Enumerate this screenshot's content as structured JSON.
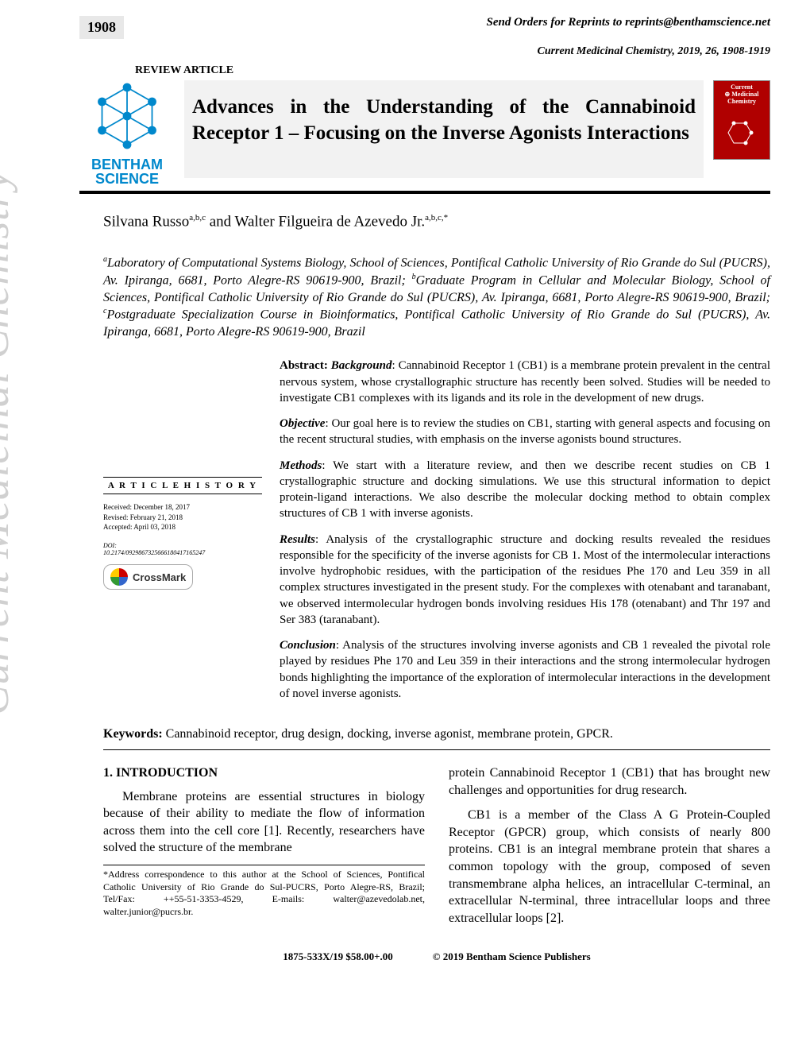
{
  "header": {
    "page_number": "1908",
    "reprints_line": "Send Orders for Reprints to reprints@benthamscience.net",
    "journal_citation": "Current Medicinal Chemistry, 2019, 26, 1908-1919",
    "article_type": "REVIEW ARTICLE"
  },
  "logo": {
    "bentham_line1": "BENTHAM",
    "bentham_line2": "SCIENCE",
    "stroke_color": "#0088cc",
    "text_color": "#0088cc"
  },
  "title": "Advances in the Understanding of the Cannabinoid Receptor 1 – Focusing on the Inverse Agonists Interactions",
  "cover_thumb": {
    "line1": "Current",
    "line2": "Medicinal",
    "line3": "Chemistry",
    "bg_color": "#b00000"
  },
  "authors_html": "Silvana Russo<sup>a,b,c</sup> and Walter Filgueira de Azevedo Jr.<sup>a,b,c,*</sup>",
  "affiliations_html": "<sup>a</sup>Laboratory of Computational Systems Biology, School of Sciences, Pontifical Catholic University of Rio Grande do Sul (PUCRS), Av. Ipiranga, 6681, Porto Alegre-RS 90619-900, Brazil; <sup>b</sup>Graduate Program in Cellular and Molecular Biology, School of Sciences, Pontifical Catholic University of Rio Grande do Sul (PUCRS), Av. Ipiranga, 6681, Porto Alegre-RS 90619-900, Brazil; <sup>c</sup>Postgraduate Specialization Course in Bioinformatics, Pontifical Catholic University of Rio Grande do Sul (PUCRS), Av. Ipiranga, 6681, Porto Alegre-RS 90619-900, Brazil",
  "history": {
    "heading": "A R T I C L E  H I S T O R Y",
    "received": "Received: December 18, 2017",
    "revised": "Revised: February 21, 2018",
    "accepted": "Accepted: April 03, 2018",
    "doi_label": "DOI:",
    "doi": "10.2174/0929867325666180417165247",
    "crossmark_label": "CrossMark",
    "crossmark_colors": [
      "#ffcc00",
      "#cc0000",
      "#3366cc",
      "#339933"
    ]
  },
  "abstract": {
    "heading": "Abstract:",
    "sections": [
      {
        "label": "Background",
        "text": ": Cannabinoid Receptor 1 (CB1) is a membrane protein prevalent in the central nervous system, whose crystallographic structure has recently been solved. Studies will be needed to investigate CB1 complexes with its ligands and its role in the development of new drugs."
      },
      {
        "label": "Objective",
        "text": ": Our goal here is to review the studies on CB1, starting with general aspects and focusing on the recent structural studies, with emphasis on the inverse agonists bound structures."
      },
      {
        "label": "Methods",
        "text": ": We start with a literature review, and then we describe recent studies on CB 1 crystallographic structure and docking simulations. We use this structural information to depict protein-ligand interactions. We also describe the molecular docking method to obtain complex structures of CB 1 with inverse agonists."
      },
      {
        "label": "Results",
        "text": ": Analysis of the crystallographic structure and docking results revealed the residues responsible for the specificity of the inverse agonists for CB 1. Most of the intermolecular interactions involve hydrophobic residues, with the participation of the residues Phe 170 and Leu 359 in all complex structures investigated in the present study. For the complexes with otenabant and taranabant, we observed intermolecular hydrogen bonds involving residues His 178 (otenabant) and Thr 197 and Ser 383 (taranabant)."
      },
      {
        "label": "Conclusion",
        "text": ": Analysis of the structures involving inverse agonists and CB 1 revealed the pivotal role played by residues Phe 170 and Leu 359 in their interactions and the strong intermolecular hydrogen bonds highlighting the importance of the exploration of intermolecular interactions in the development of novel inverse agonists."
      }
    ]
  },
  "keywords": {
    "label": "Keywords:",
    "text": " Cannabinoid receptor, drug design, docking, inverse agonist, membrane protein, GPCR."
  },
  "body": {
    "heading": "1. INTRODUCTION",
    "left_p1": "Membrane proteins are essential structures in biology because of their ability to mediate the flow of information across them into the cell core [1]. Recently, researchers have solved the structure of the membrane",
    "right_p1": "protein Cannabinoid Receptor 1 (CB1) that has brought new challenges and opportunities for drug research.",
    "right_p2": "CB1 is a member of the Class A G Protein-Coupled Receptor (GPCR) group, which consists of nearly 800 proteins. CB1 is an integral membrane protein that shares a common topology with the group, composed of seven transmembrane alpha helices, an intracellular C-terminal, an extracellular N-terminal, three intracellular loops and three extracellular loops [2].",
    "corr": "*Address correspondence to this author at the School of Sciences, Pontifical Catholic University of Rio Grande do Sul-PUCRS, Porto Alegre-RS, Brazil; Tel/Fax: ++55-51-3353-4529,\nE-mails: walter@azevedolab.net, walter.junior@pucrs.br."
  },
  "footer": {
    "issn_price": "1875-533X/19 $58.00+.00",
    "copyright": "© 2019 Bentham Science Publishers"
  },
  "watermark": "Current Medicinal Chemistry",
  "colors": {
    "header_box_bg": "#e8e8e8",
    "title_bg": "#f2f2f2",
    "watermark_color": "#d0d0d0"
  }
}
